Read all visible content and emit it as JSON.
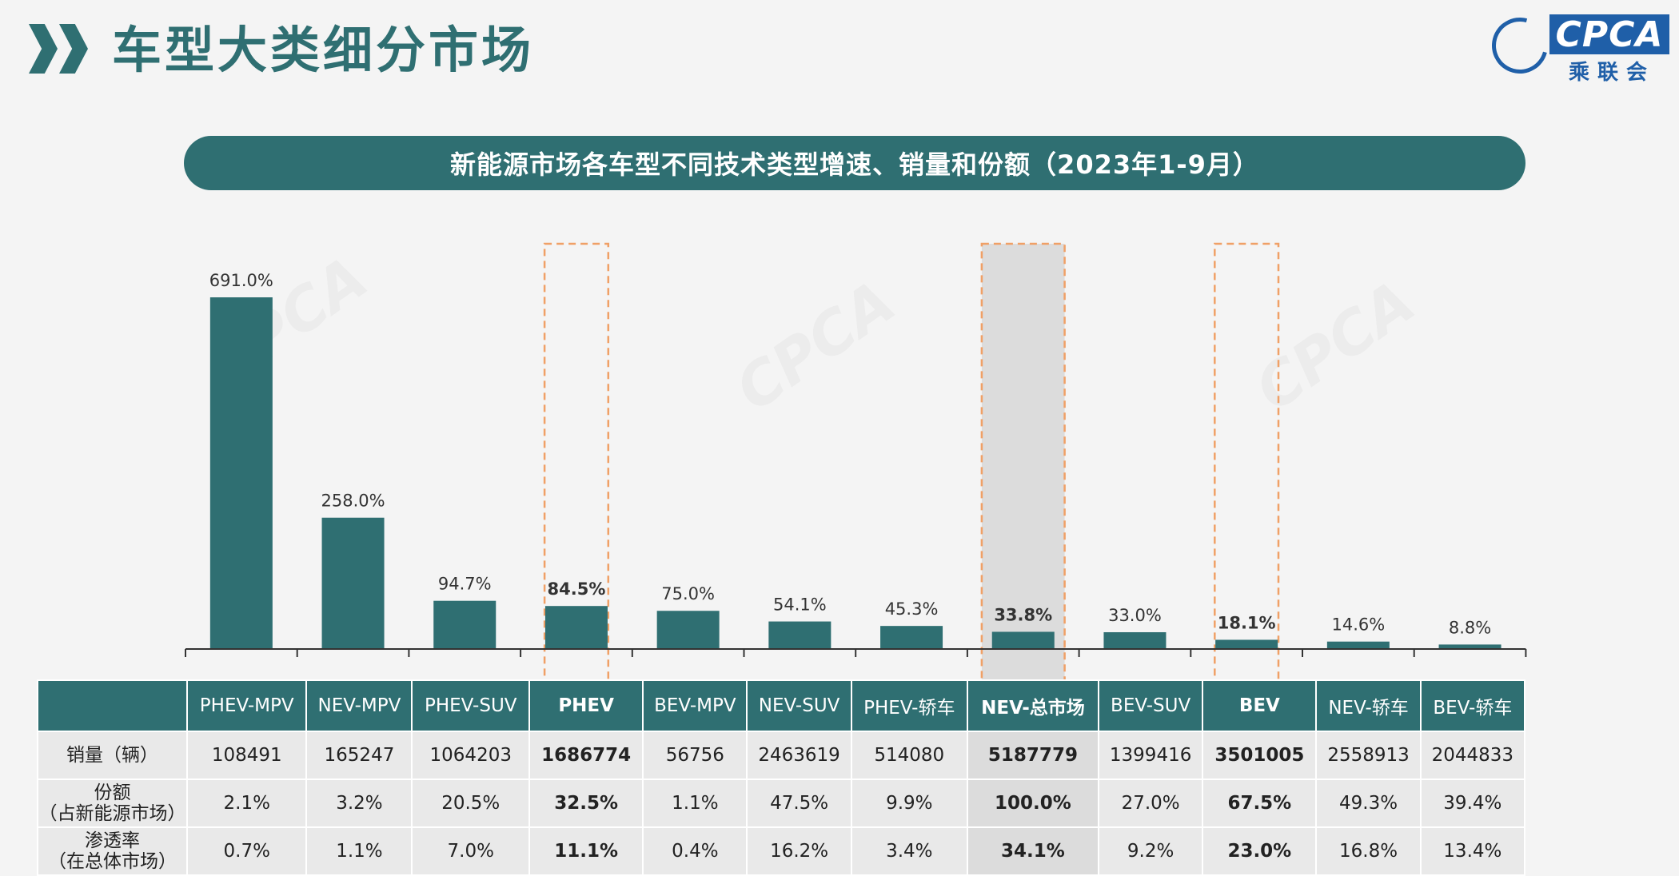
{
  "page": {
    "title": "车型大类细分市场",
    "banner": "新能源市场各车型不同技术类型增速、销量和份额（2023年1-9月）"
  },
  "logo": {
    "badge": "CPCA",
    "sub": "乘联会",
    "mark": "CPCA"
  },
  "watermark": "CPCA",
  "colors": {
    "primary": "#2f6f72",
    "highlight_border": "#f0a066",
    "shade": "#dcdcdc",
    "logo": "#1f5fa8"
  },
  "chart_data": {
    "type": "bar",
    "categories": [
      "PHEV-MPV",
      "NEV-MPV",
      "PHEV-SUV",
      "PHEV",
      "BEV-MPV",
      "NEV-SUV",
      "PHEV-轿车",
      "NEV-总市场",
      "BEV-SUV",
      "BEV",
      "NEV-轿车",
      "BEV-轿车"
    ],
    "values": [
      691.0,
      258.0,
      94.7,
      84.5,
      75.0,
      54.1,
      45.3,
      33.8,
      33.0,
      18.1,
      14.6,
      8.8
    ],
    "value_labels": [
      "691.0%",
      "258.0%",
      "94.7%",
      "84.5%",
      "75.0%",
      "54.1%",
      "45.3%",
      "33.8%",
      "33.0%",
      "18.1%",
      "14.6%",
      "8.8%"
    ],
    "unit": "%",
    "ylim": [
      0,
      691.0
    ],
    "highlighted_categories": [
      "PHEV",
      "NEV-总市场",
      "BEV"
    ],
    "shaded_category": "NEV-总市场"
  },
  "table": {
    "rows": [
      {
        "label": "销量（辆）",
        "values": [
          "108491",
          "165247",
          "1064203",
          "1686774",
          "56756",
          "2463619",
          "514080",
          "5187779",
          "1399416",
          "3501005",
          "2558913",
          "2044833"
        ]
      },
      {
        "label": "份额\n（占新能源市场）",
        "values": [
          "2.1%",
          "3.2%",
          "20.5%",
          "32.5%",
          "1.1%",
          "47.5%",
          "9.9%",
          "100.0%",
          "27.0%",
          "67.5%",
          "49.3%",
          "39.4%"
        ]
      },
      {
        "label": "渗透率\n（在总体市场）",
        "values": [
          "0.7%",
          "1.1%",
          "7.0%",
          "11.1%",
          "0.4%",
          "16.2%",
          "3.4%",
          "34.1%",
          "9.2%",
          "23.0%",
          "16.8%",
          "13.4%"
        ]
      }
    ]
  }
}
